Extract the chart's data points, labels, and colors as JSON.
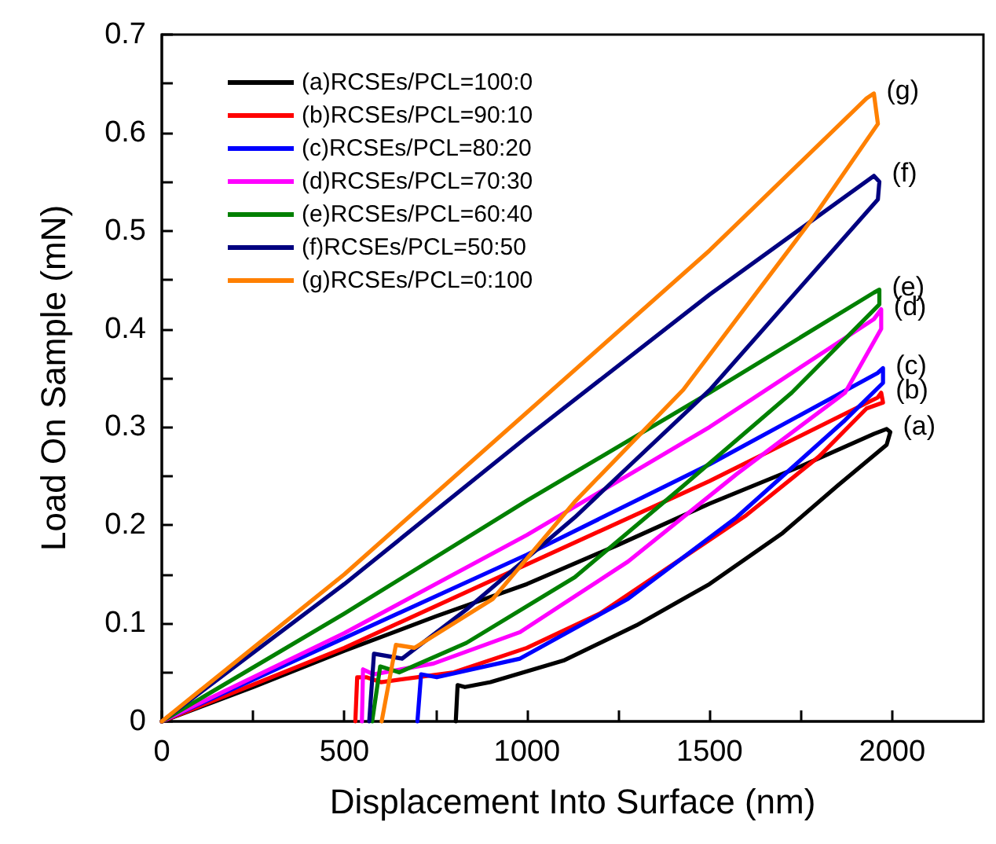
{
  "chart_data": {
    "type": "line",
    "xlabel": "Displacement Into Surface (nm)",
    "ylabel": "Load On Sample (mN)",
    "xlim": [
      0,
      2250
    ],
    "ylim": [
      0,
      0.7
    ],
    "xticks": [
      0,
      {
        "value": 250,
        "label": null
      },
      500,
      {
        "value": 750,
        "label": null
      },
      1000,
      {
        "value": 1250,
        "label": null
      },
      1500,
      {
        "value": 1750,
        "label": null
      },
      2000
    ],
    "yticks": [
      0.0,
      {
        "value": 0.05,
        "label": null
      },
      0.1,
      {
        "value": 0.15,
        "label": null
      },
      0.2,
      {
        "value": 0.25,
        "label": null
      },
      0.3,
      {
        "value": 0.35,
        "label": null
      },
      0.4,
      {
        "value": 0.45,
        "label": null
      },
      0.5,
      {
        "value": 0.55,
        "label": null
      },
      0.6,
      {
        "value": 0.65,
        "label": null
      },
      0.7
    ],
    "legend": "top left",
    "grid": false,
    "marker": "none",
    "line_style": "solid",
    "series": [
      {
        "name": "(a)RCSEs/PCL=100:0",
        "color": "#000000",
        "x": [
          0,
          250,
          500,
          750,
          1000,
          1250,
          1500,
          1750,
          1950,
          1985,
          1995,
          1985,
          1850,
          1700,
          1500,
          1300,
          1100,
          900,
          830,
          810,
          805
        ],
        "values": [
          0,
          0.035,
          0.072,
          0.107,
          0.14,
          0.18,
          0.222,
          0.26,
          0.293,
          0.298,
          0.295,
          0.282,
          0.24,
          0.192,
          0.14,
          0.098,
          0.062,
          0.04,
          0.035,
          0.037,
          0
        ]
      },
      {
        "name": "(b)RCSEs/PCL=90:10",
        "color": "#ff0000",
        "x": [
          0,
          500,
          1000,
          1500,
          1960,
          1970,
          1975,
          1930,
          1800,
          1600,
          1400,
          1200,
          1000,
          800,
          600,
          560,
          535,
          530
        ],
        "values": [
          0,
          0.075,
          0.16,
          0.245,
          0.33,
          0.335,
          0.325,
          0.319,
          0.27,
          0.21,
          0.16,
          0.11,
          0.075,
          0.05,
          0.04,
          0.045,
          0.045,
          0
        ]
      },
      {
        "name": "(c)RCSEs/PCL=80:20",
        "color": "#0000ff",
        "x": [
          0,
          500,
          1000,
          1500,
          1960,
          1975,
          1975,
          1871,
          1574,
          1277,
          981,
          753,
          710,
          700
        ],
        "values": [
          0,
          0.085,
          0.17,
          0.262,
          0.355,
          0.36,
          0.345,
          0.307,
          0.208,
          0.125,
          0.064,
          0.045,
          0.048,
          0
        ]
      },
      {
        "name": "(d)RCSEs/PCL=70:30",
        "color": "#ff00ff",
        "x": [
          0,
          500,
          1000,
          1500,
          1950,
          1970,
          1970,
          1871,
          1574,
          1277,
          981,
          744,
          580,
          551,
          548
        ],
        "values": [
          0,
          0.09,
          0.19,
          0.3,
          0.41,
          0.42,
          0.4,
          0.335,
          0.252,
          0.163,
          0.091,
          0.059,
          0.048,
          0.053,
          0
        ]
      },
      {
        "name": "(e)RCSEs/PCL=60:40",
        "color": "#008000",
        "x": [
          0,
          500,
          1000,
          1500,
          1950,
          1965,
          1965,
          1725,
          1428,
          1131,
          834,
          650,
          598,
          576
        ],
        "values": [
          0,
          0.11,
          0.225,
          0.335,
          0.437,
          0.44,
          0.425,
          0.335,
          0.24,
          0.147,
          0.08,
          0.05,
          0.056,
          0
        ]
      },
      {
        "name": "(f)RCSEs/PCL=50:50",
        "color": "#000080",
        "x": [
          0,
          500,
          1000,
          1500,
          1950,
          1965,
          1961,
          1501,
          1131,
          834,
          658,
          581,
          568
        ],
        "values": [
          0,
          0.14,
          0.29,
          0.435,
          0.556,
          0.55,
          0.532,
          0.338,
          0.208,
          0.114,
          0.064,
          0.069,
          0
        ]
      },
      {
        "name": "(g)RCSEs/PCL=0:100",
        "color": "#ff8000",
        "x": [
          0,
          500,
          1000,
          1500,
          1930,
          1950,
          1961,
          1785,
          1428,
          1131,
          907,
          692,
          641,
          602
        ],
        "values": [
          0,
          0.15,
          0.315,
          0.48,
          0.635,
          0.64,
          0.609,
          0.514,
          0.338,
          0.224,
          0.125,
          0.075,
          0.078,
          0
        ]
      }
    ],
    "annotations": [
      {
        "text": "(a)",
        "x": 1995,
        "y": 0.298
      },
      {
        "text": "(b)",
        "x": 1975,
        "y": 0.335
      },
      {
        "text": "(c)",
        "x": 1975,
        "y": 0.36
      },
      {
        "text": "(d)",
        "x": 1970,
        "y": 0.42
      },
      {
        "text": "(e)",
        "x": 1965,
        "y": 0.44
      },
      {
        "text": "(f)",
        "x": 1965,
        "y": 0.556
      },
      {
        "text": "(g)",
        "x": 1950,
        "y": 0.64
      }
    ]
  }
}
